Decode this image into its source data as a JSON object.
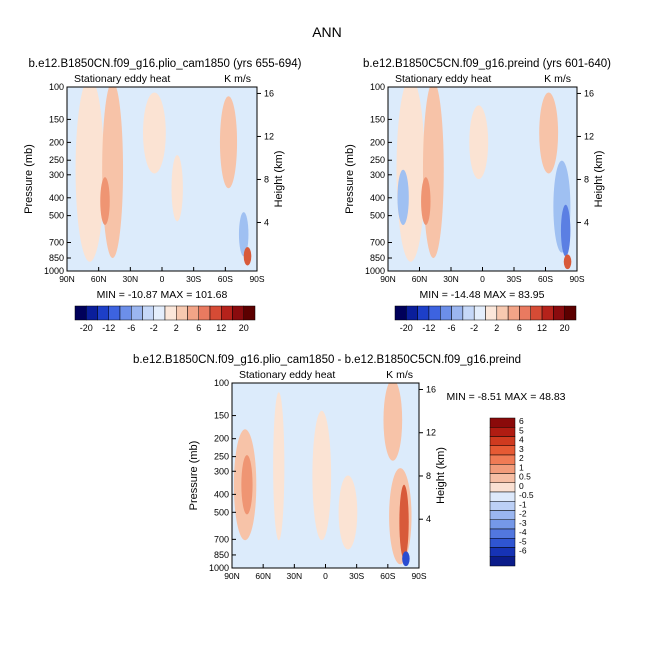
{
  "main_title": "ANN",
  "colors": {
    "panel_bg": "#dcebfb",
    "warm_light": "#fbe3d3",
    "warm_mid": "#f7c3a8",
    "warm_strong": "#ef9573",
    "warm_deep": "#d85a3a",
    "cool_mid": "#9fc0f2",
    "cool_strong": "#5b7fe3",
    "cool_deep": "#2a4bd0"
  },
  "chart_data": [
    {
      "type": "heatmap",
      "title": "b.e12.B1850CN.f09_g16.plio_cam1850 (yrs 655-694)",
      "subtitle_left": "Stationary eddy heat",
      "subtitle_right": "K m/s",
      "ylabel": "Pressure (mb)",
      "ylabel_right": "Height (km)",
      "xticks": [
        "90N",
        "60N",
        "30N",
        "0",
        "30S",
        "60S",
        "90S"
      ],
      "yticks": [
        "100",
        "150",
        "200",
        "250",
        "300",
        "400",
        "500",
        "700",
        "850",
        "1000"
      ],
      "right_ticks": [
        "16",
        "12",
        "8",
        "4"
      ],
      "stats": "MIN = -10.87   MAX = 101.68",
      "colorbar": {
        "levels": [
          "-20",
          "-12",
          "-6",
          "-2",
          "2",
          "6",
          "12",
          "20"
        ],
        "colors": [
          "#00005a",
          "#0a1e9b",
          "#1d3fc8",
          "#3d63e0",
          "#6c8fe9",
          "#9bb6f0",
          "#c6d8f8",
          "#e4eefc",
          "#fbe7da",
          "#f7c9b0",
          "#f2a487",
          "#e97a60",
          "#d64b35",
          "#b5221b",
          "#8a0b0e",
          "#5c0000"
        ]
      }
    },
    {
      "type": "heatmap",
      "title": "b.e12.B1850C5CN.f09_g16.preind (yrs 601-640)",
      "subtitle_left": "Stationary eddy heat",
      "subtitle_right": "K m/s",
      "ylabel": "Pressure (mb)",
      "ylabel_right": "Height (km)",
      "xticks": [
        "90N",
        "60N",
        "30N",
        "0",
        "30S",
        "60S",
        "90S"
      ],
      "yticks": [
        "100",
        "150",
        "200",
        "250",
        "300",
        "400",
        "500",
        "700",
        "850",
        "1000"
      ],
      "right_ticks": [
        "16",
        "12",
        "8",
        "4"
      ],
      "stats": "MIN = -14.48   MAX =  83.95",
      "colorbar": {
        "levels": [
          "-20",
          "-12",
          "-6",
          "-2",
          "2",
          "6",
          "12",
          "20"
        ],
        "colors": [
          "#00005a",
          "#0a1e9b",
          "#1d3fc8",
          "#3d63e0",
          "#6c8fe9",
          "#9bb6f0",
          "#c6d8f8",
          "#e4eefc",
          "#fbe7da",
          "#f7c9b0",
          "#f2a487",
          "#e97a60",
          "#d64b35",
          "#b5221b",
          "#8a0b0e",
          "#5c0000"
        ]
      }
    },
    {
      "type": "heatmap",
      "title": "b.e12.B1850CN.f09_g16.plio_cam1850 - b.e12.B1850C5CN.f09_g16.preind",
      "subtitle_left": "Stationary eddy heat",
      "subtitle_right": "K m/s",
      "ylabel": "Pressure (mb)",
      "ylabel_right": "Height (km)",
      "xticks": [
        "90N",
        "60N",
        "30N",
        "0",
        "30S",
        "60S",
        "90S"
      ],
      "yticks": [
        "100",
        "150",
        "200",
        "250",
        "300",
        "400",
        "500",
        "700",
        "850",
        "1000"
      ],
      "right_ticks": [
        "16",
        "12",
        "8",
        "4"
      ],
      "stats": "MIN =  -8.51   MAX =  48.83",
      "colorbar": {
        "levels": [
          "6",
          "5",
          "4",
          "3",
          "2",
          "1",
          "0.5",
          "0",
          "-0.5",
          "-1",
          "-2",
          "-3",
          "-4",
          "-5",
          "-6"
        ],
        "colors": [
          "#8b0a0a",
          "#b01c12",
          "#cf3a1f",
          "#e65a34",
          "#f07b55",
          "#f29c7b",
          "#f6bea4",
          "#fae0d2",
          "#dde9fb",
          "#bcd0f6",
          "#9ab6f0",
          "#7598e8",
          "#5277df",
          "#2f55d2",
          "#1633b5",
          "#0b1c8a"
        ]
      }
    }
  ]
}
